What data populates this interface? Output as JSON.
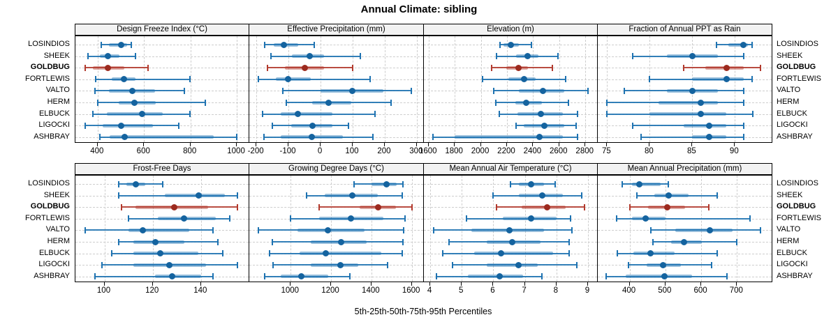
{
  "title": "Annual Climate: sibling",
  "caption": "5th-25th-50th-75th-95th Percentiles",
  "sites": [
    "LOSINDIOS",
    "SHEEK",
    "GOLDBUG",
    "FORTLEWIS",
    "VALTO",
    "HERM",
    "ELBUCK",
    "LIGOCKI",
    "ASHBRAY"
  ],
  "highlight_site": "GOLDBUG",
  "colors": {
    "normal": "#1d72b1",
    "normal_dot": "#14639f",
    "highlight": "#b23a2d",
    "highlight_dot": "#9c2a1e",
    "strip_bg": "#f2f2f2",
    "grid": "#cdcdcd"
  },
  "chart_data": {
    "type": "dotplot-percentile-panels",
    "percentiles": [
      "5th",
      "25th",
      "50th",
      "75th",
      "95th"
    ],
    "sites": [
      "LOSINDIOS",
      "SHEEK",
      "GOLDBUG",
      "FORTLEWIS",
      "VALTO",
      "HERM",
      "ELBUCK",
      "LIGOCKI",
      "ASHBRAY"
    ],
    "panels": [
      {
        "title": "Design Freeze Index (°C)",
        "row": 0,
        "col": 0,
        "xlim": [
          304,
          1054
        ],
        "ticks": [
          400,
          600,
          800,
          1000
        ],
        "values": [
          [
            415,
            450,
            500,
            527,
            545
          ],
          [
            358,
            408,
            445,
            495,
            562
          ],
          [
            345,
            380,
            445,
            515,
            617
          ],
          [
            390,
            460,
            513,
            563,
            798
          ],
          [
            387,
            450,
            548,
            648,
            775
          ],
          [
            400,
            490,
            560,
            650,
            865
          ],
          [
            380,
            440,
            593,
            680,
            798
          ],
          [
            345,
            420,
            500,
            638,
            750
          ],
          [
            408,
            452,
            517,
            900,
            1000
          ]
        ]
      },
      {
        "title": "Effective Precipitation (mm)",
        "row": 0,
        "col": 1,
        "xlim": [
          -222,
          322
        ],
        "ticks": [
          -200,
          -100,
          0,
          100,
          200,
          300
        ],
        "values": [
          [
            -175,
            -145,
            -115,
            -70,
            -20
          ],
          [
            -155,
            -90,
            -34,
            10,
            124
          ],
          [
            -165,
            -110,
            -48,
            10,
            100
          ],
          [
            -194,
            -139,
            -102,
            -30,
            154
          ],
          [
            -118,
            0,
            99,
            196,
            283
          ],
          [
            -106,
            -26,
            24,
            95,
            219
          ],
          [
            -181,
            -124,
            -71,
            38,
            170
          ],
          [
            -150,
            -91,
            -26,
            38,
            88
          ],
          [
            -176,
            -124,
            -28,
            69,
            164
          ]
        ]
      },
      {
        "title": "Elevation (m)",
        "row": 0,
        "col": 2,
        "xlim": [
          1564,
          2895
        ],
        "ticks": [
          1600,
          1800,
          2000,
          2200,
          2400,
          2600,
          2800
        ],
        "values": [
          [
            2146,
            2175,
            2228,
            2290,
            2388
          ],
          [
            2120,
            2270,
            2358,
            2440,
            2590
          ],
          [
            2082,
            2196,
            2290,
            2360,
            2548
          ],
          [
            2012,
            2210,
            2330,
            2420,
            2650
          ],
          [
            2100,
            2290,
            2478,
            2640,
            2818
          ],
          [
            2112,
            2262,
            2348,
            2470,
            2668
          ],
          [
            2140,
            2280,
            2458,
            2630,
            2740
          ],
          [
            2270,
            2330,
            2488,
            2640,
            2728
          ],
          [
            1636,
            1800,
            2448,
            2630,
            2740
          ]
        ]
      },
      {
        "title": "Fraction of Annual PPT as Rain",
        "row": 0,
        "col": 3,
        "xlim": [
          73.9,
          94.4
        ],
        "ticks": [
          75,
          80,
          85,
          90
        ],
        "values": [
          [
            87.8,
            89.2,
            91,
            91.5,
            92
          ],
          [
            78,
            82,
            85,
            88,
            91
          ],
          [
            84,
            86.5,
            89,
            91,
            93
          ],
          [
            80,
            85,
            89,
            91,
            92
          ],
          [
            77,
            82,
            85,
            88,
            91
          ],
          [
            75,
            81,
            86,
            88,
            91
          ],
          [
            75,
            80,
            86,
            89,
            92.1
          ],
          [
            78,
            84,
            87,
            89,
            91
          ],
          [
            79,
            85,
            87,
            89,
            91
          ]
        ]
      },
      {
        "title": "Frost-Free Days",
        "row": 1,
        "col": 0,
        "xlim": [
          88,
          160
        ],
        "ticks": [
          100,
          120,
          140
        ],
        "values": [
          [
            106,
            109,
            113,
            117,
            124
          ],
          [
            106,
            125,
            139,
            150,
            155
          ],
          [
            107,
            113,
            129,
            143,
            155
          ],
          [
            110,
            122,
            133,
            146,
            152
          ],
          [
            92,
            110,
            116,
            135,
            145
          ],
          [
            106,
            112,
            121,
            133,
            147
          ],
          [
            103,
            112,
            123,
            139,
            149
          ],
          [
            99,
            112,
            127,
            142,
            155
          ],
          [
            96,
            121,
            128,
            140,
            145
          ]
        ]
      },
      {
        "title": "Growing Degree Days (°C)",
        "row": 1,
        "col": 1,
        "xlim": [
          795,
          1660
        ],
        "ticks": [
          1000,
          1200,
          1400,
          1600
        ],
        "values": [
          [
            1315,
            1400,
            1475,
            1525,
            1556
          ],
          [
            1078,
            1170,
            1305,
            1430,
            1552
          ],
          [
            1142,
            1340,
            1434,
            1520,
            1600
          ],
          [
            1000,
            1140,
            1300,
            1460,
            1566
          ],
          [
            840,
            1035,
            1185,
            1365,
            1560
          ],
          [
            910,
            1100,
            1250,
            1375,
            1556
          ],
          [
            896,
            1045,
            1175,
            1448,
            1552
          ],
          [
            913,
            1100,
            1245,
            1335,
            1480
          ],
          [
            870,
            950,
            1052,
            1185,
            1292
          ]
        ]
      },
      {
        "title": "Mean Annual Air Temperature (°C)",
        "row": 1,
        "col": 2,
        "xlim": [
          3.8,
          9.31
        ],
        "ticks": [
          4,
          5,
          6,
          7,
          8,
          9
        ],
        "values": [
          [
            6.55,
            6.8,
            7.2,
            7.6,
            7.95
          ],
          [
            6,
            6.8,
            7.55,
            8.2,
            8.8
          ],
          [
            6.1,
            6.9,
            7.7,
            8.3,
            8.9
          ],
          [
            5.15,
            6.3,
            7.2,
            8,
            8.45
          ],
          [
            4.1,
            5.3,
            6.5,
            7.6,
            8.5
          ],
          [
            4.6,
            5.8,
            6.6,
            7.5,
            8.4
          ],
          [
            4.4,
            5.4,
            6.25,
            7.9,
            8.4
          ],
          [
            4.7,
            5.8,
            6.8,
            7.4,
            8.65
          ],
          [
            4.2,
            5.2,
            6.2,
            6.95,
            7.55
          ]
        ]
      },
      {
        "title": "Mean Annual Precipitation (mm)",
        "row": 1,
        "col": 3,
        "xlim": [
          311,
          799
        ],
        "ticks": [
          400,
          500,
          600,
          700
        ],
        "values": [
          [
            380,
            406,
            427,
            487,
            509
          ],
          [
            420,
            470,
            509,
            565,
            645
          ],
          [
            400,
            452,
            505,
            555,
            621
          ],
          [
            364,
            406,
            444,
            501,
            737
          ],
          [
            459,
            528,
            625,
            688,
            766
          ],
          [
            465,
            516,
            553,
            601,
            700
          ],
          [
            366,
            410,
            458,
            526,
            645
          ],
          [
            396,
            448,
            493,
            543,
            629
          ],
          [
            335,
            390,
            498,
            575,
            672
          ]
        ]
      }
    ]
  }
}
